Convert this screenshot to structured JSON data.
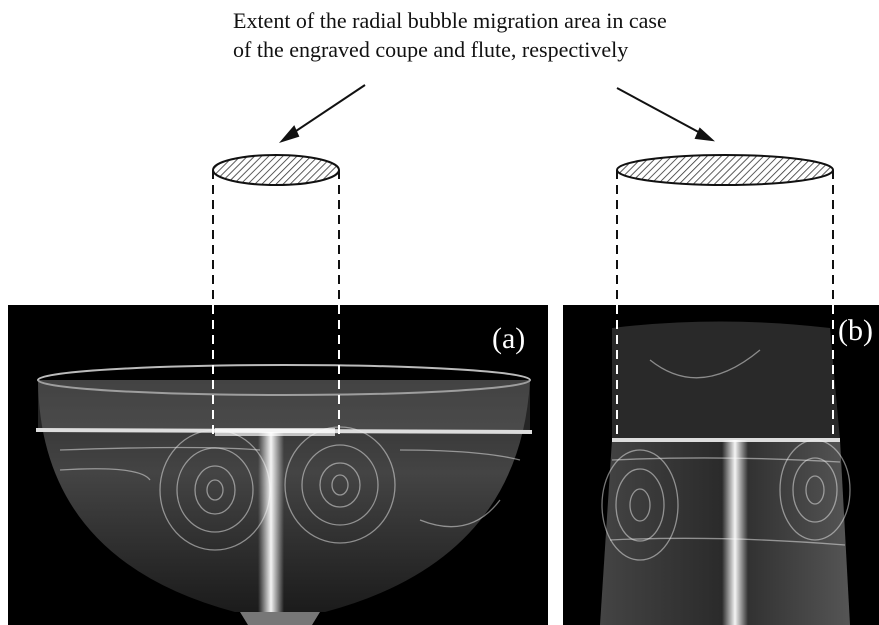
{
  "caption": {
    "lines": [
      "Extent of the radial bubble migration area in case",
      "of the engraved coupe and flute, respectively"
    ]
  },
  "panels": [
    {
      "label": "(a)"
    },
    {
      "label": "(b)"
    }
  ]
}
